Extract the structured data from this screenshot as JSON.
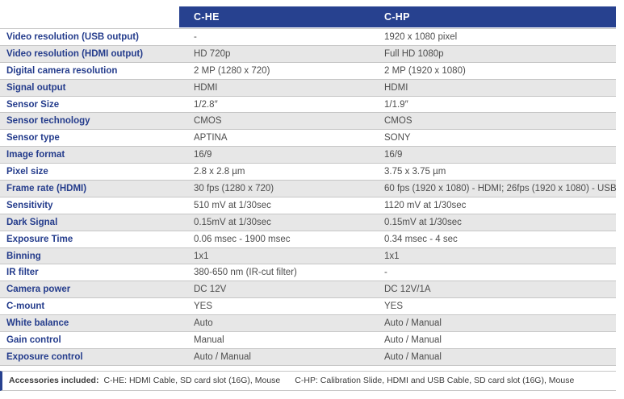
{
  "table": {
    "columns": [
      {
        "label": "C-HE"
      },
      {
        "label": "C-HP"
      }
    ],
    "rows": [
      {
        "label": "Video resolution (USB output)",
        "che": "-",
        "chp": "1920 x 1080 pixel"
      },
      {
        "label": "Video resolution (HDMI output)",
        "che": "HD 720p",
        "chp": "Full HD 1080p"
      },
      {
        "label": "Digital camera resolution",
        "che": "2 MP (1280 x 720)",
        "chp": "2 MP (1920 x 1080)"
      },
      {
        "label": "Signal output",
        "che": "HDMI",
        "chp": "HDMI"
      },
      {
        "label": "Sensor Size",
        "che": "1/2.8″",
        "chp": "1/1.9″"
      },
      {
        "label": "Sensor technology",
        "che": "CMOS",
        "chp": "CMOS"
      },
      {
        "label": "Sensor type",
        "che": "APTINA",
        "chp": "SONY"
      },
      {
        "label": "Image format",
        "che": "16/9",
        "chp": "16/9"
      },
      {
        "label": "Pixel size",
        "che": "2.8 x 2.8 µm",
        "chp": "3.75 x 3.75 µm"
      },
      {
        "label": "Frame rate (HDMI)",
        "che": "30 fps (1280 x 720)",
        "chp": "60 fps (1920 x 1080) - HDMI; 26fps (1920 x 1080) - USB"
      },
      {
        "label": "Sensitivity",
        "che": "510 mV at 1/30sec",
        "chp": "1120 mV at 1/30sec"
      },
      {
        "label": "Dark Signal",
        "che": "0.15mV at 1/30sec",
        "chp": "0.15mV at 1/30sec"
      },
      {
        "label": "Exposure Time",
        "che": "0.06 msec - 1900 msec",
        "chp": "0.34 msec - 4 sec"
      },
      {
        "label": "Binning",
        "che": "1x1",
        "chp": "1x1"
      },
      {
        "label": "IR filter",
        "che": "380-650 nm (IR-cut filter)",
        "chp": "-"
      },
      {
        "label": "Camera power",
        "che": "DC 12V",
        "chp": "DC 12V/1A"
      },
      {
        "label": "C-mount",
        "che": "YES",
        "chp": "YES"
      },
      {
        "label": "White balance",
        "che": "Auto",
        "chp": "Auto / Manual"
      },
      {
        "label": "Gain control",
        "che": "Manual",
        "chp": "Auto / Manual"
      },
      {
        "label": "Exposure control",
        "che": "Auto / Manual",
        "chp": "Auto / Manual"
      }
    ]
  },
  "footer": {
    "title": "Accessories included:",
    "che_accessories": "C-HE: HDMI Cable, SD card slot (16G), Mouse",
    "chp_accessories": "C-HP: Calibration Slide, HDMI and USB Cable, SD card slot (16G), Mouse"
  },
  "colors": {
    "header_bg": "#27418f",
    "label_text": "#243c8c",
    "value_text": "#4d4d4d",
    "row_alt_bg": "#e7e7e7",
    "row_border": "#c6c6c6"
  }
}
